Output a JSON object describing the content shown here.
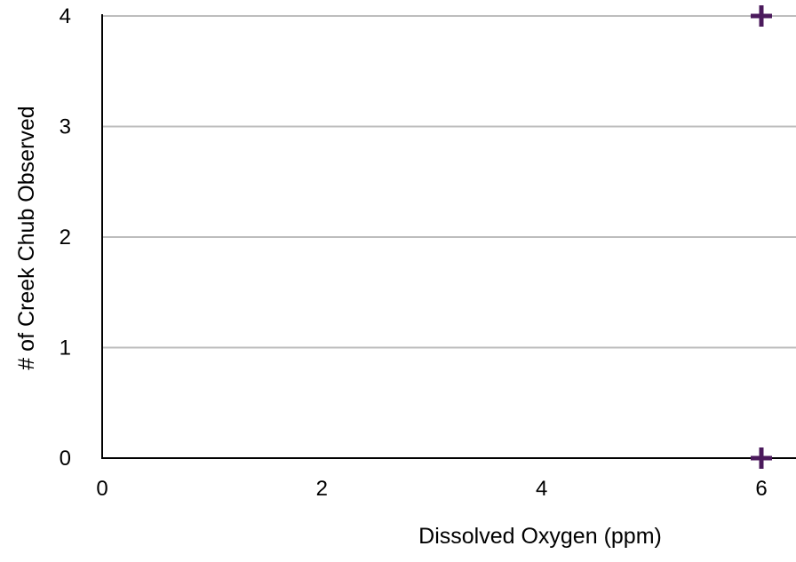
{
  "chart_data": {
    "type": "scatter",
    "title": "",
    "xlabel": "Dissolved Oxygen (ppm)",
    "ylabel": "# of Creek Chub Observed",
    "xlim": [
      0,
      6
    ],
    "ylim": [
      0,
      4
    ],
    "xticks": [
      "0",
      "2",
      "4",
      "6"
    ],
    "yticks": [
      "0",
      "1",
      "2",
      "3",
      "4"
    ],
    "grid": "horizontal",
    "legend": "none",
    "marker": "plus",
    "series": [
      {
        "color": "#4b1a5c",
        "points": [
          {
            "x": 6,
            "y": 4
          },
          {
            "x": 6,
            "y": 0
          }
        ]
      }
    ],
    "colors": {
      "gridline": "#bdbdbd",
      "axis": "#000000",
      "marker": "#4b1a5c"
    }
  }
}
